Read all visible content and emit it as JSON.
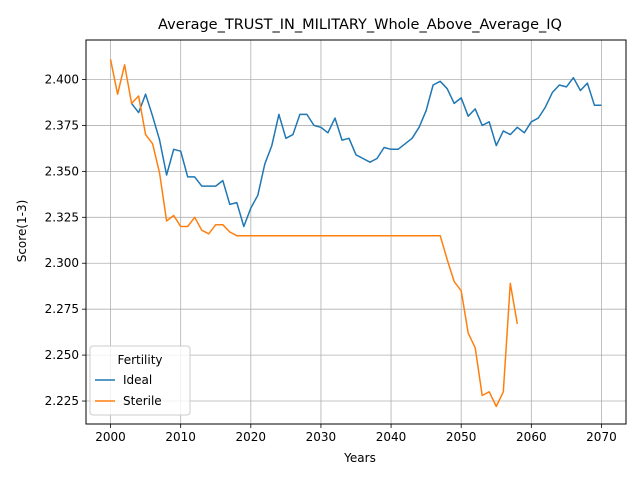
{
  "chart_data": {
    "type": "line",
    "title": "Average_TRUST_IN_MILITARY_Whole_Above_Average_IQ",
    "xlabel": "Years",
    "ylabel": "Score(1-3)",
    "xlim": [
      1996.5,
      2073.5
    ],
    "ylim": [
      2.2125,
      2.4215
    ],
    "xticks": [
      2000,
      2010,
      2020,
      2030,
      2040,
      2050,
      2060,
      2070
    ],
    "yticks": [
      2.225,
      2.25,
      2.275,
      2.3,
      2.325,
      2.35,
      2.375,
      2.4
    ],
    "ytick_labels": [
      "2.225",
      "2.250",
      "2.275",
      "2.300",
      "2.325",
      "2.350",
      "2.375",
      "2.400"
    ],
    "grid": true,
    "legend": {
      "title": "Fertility",
      "placement": "lower-left"
    },
    "series": [
      {
        "name": "Ideal",
        "color": "#1f77b4",
        "x": [
          2003,
          2004,
          2005,
          2006,
          2007,
          2008,
          2009,
          2010,
          2011,
          2012,
          2013,
          2014,
          2015,
          2016,
          2017,
          2018,
          2019,
          2020,
          2021,
          2022,
          2023,
          2024,
          2025,
          2026,
          2027,
          2028,
          2029,
          2030,
          2031,
          2032,
          2033,
          2034,
          2035,
          2036,
          2037,
          2038,
          2039,
          2040,
          2041,
          2042,
          2043,
          2044,
          2045,
          2046,
          2047,
          2048,
          2049,
          2050,
          2051,
          2052,
          2053,
          2054,
          2055,
          2056,
          2057,
          2058,
          2059,
          2060,
          2061,
          2062,
          2063,
          2064,
          2065,
          2066,
          2067,
          2068,
          2069,
          2070
        ],
        "values": [
          2.387,
          2.382,
          2.392,
          2.38,
          2.367,
          2.348,
          2.362,
          2.361,
          2.347,
          2.347,
          2.342,
          2.342,
          2.342,
          2.345,
          2.332,
          2.333,
          2.32,
          2.33,
          2.337,
          2.354,
          2.364,
          2.381,
          2.368,
          2.37,
          2.381,
          2.381,
          2.375,
          2.374,
          2.371,
          2.379,
          2.367,
          2.368,
          2.359,
          2.357,
          2.355,
          2.357,
          2.363,
          2.362,
          2.362,
          2.365,
          2.368,
          2.374,
          2.383,
          2.397,
          2.399,
          2.395,
          2.387,
          2.39,
          2.38,
          2.384,
          2.375,
          2.377,
          2.364,
          2.372,
          2.37,
          2.374,
          2.371,
          2.377,
          2.379,
          2.385,
          2.393,
          2.397,
          2.396,
          2.401,
          2.394,
          2.398,
          2.386,
          2.386
        ]
      },
      {
        "name": "Sterile",
        "color": "#ff7f0e",
        "x": [
          2000,
          2001,
          2002,
          2003,
          2004,
          2005,
          2006,
          2007,
          2008,
          2009,
          2010,
          2011,
          2012,
          2013,
          2014,
          2015,
          2016,
          2017,
          2018,
          2019,
          2020,
          2021,
          2022,
          2023,
          2024,
          2025,
          2026,
          2027,
          2028,
          2029,
          2030,
          2031,
          2032,
          2033,
          2034,
          2035,
          2036,
          2037,
          2038,
          2039,
          2040,
          2041,
          2042,
          2043,
          2044,
          2045,
          2046,
          2047,
          2048,
          2049,
          2050,
          2051,
          2052,
          2053,
          2054,
          2055,
          2056,
          2057,
          2058
        ],
        "values": [
          2.411,
          2.392,
          2.408,
          2.387,
          2.391,
          2.37,
          2.365,
          2.349,
          2.323,
          2.326,
          2.32,
          2.32,
          2.325,
          2.318,
          2.316,
          2.321,
          2.321,
          2.317,
          2.315,
          2.315,
          2.315,
          2.315,
          2.315,
          2.315,
          2.315,
          2.315,
          2.315,
          2.315,
          2.315,
          2.315,
          2.315,
          2.315,
          2.315,
          2.315,
          2.315,
          2.315,
          2.315,
          2.315,
          2.315,
          2.315,
          2.315,
          2.315,
          2.315,
          2.315,
          2.315,
          2.315,
          2.315,
          2.315,
          2.302,
          2.29,
          2.285,
          2.262,
          2.254,
          2.228,
          2.23,
          2.222,
          2.23,
          2.289,
          2.267
        ]
      }
    ]
  }
}
